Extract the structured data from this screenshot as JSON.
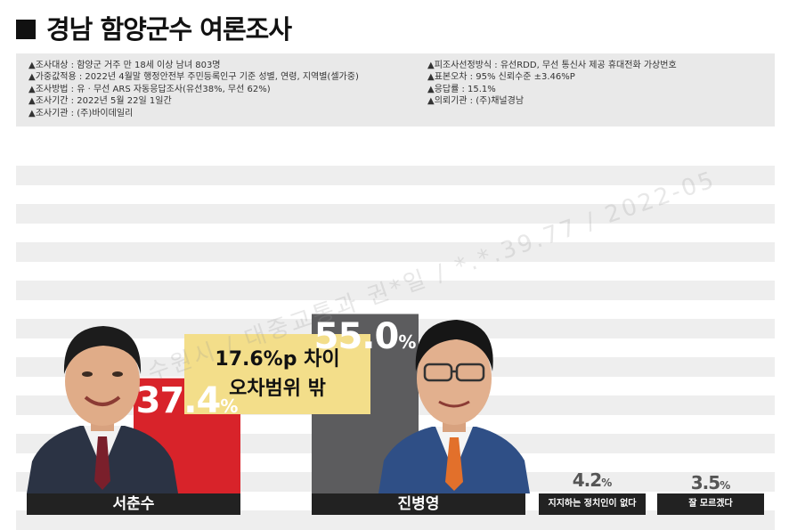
{
  "title": "경남 함양군수 여론조사",
  "info_left": [
    "▲조사대상 : 함양군 거주 만 18세 이상 남녀 803명",
    "▲가중값적용 : 2022년 4월말 행정안전부 주민등록인구 기준 성별, 연령, 지역별(셀가중)",
    "▲조사방법 : 유 · 무선 ARS 자동응답조사(유선38%, 무선 62%)",
    "▲조사기간 : 2022년 5월 22일 1일간",
    "▲조사기관 : (주)바이데일리"
  ],
  "info_right": [
    "▲피조사선정방식 : 유선RDD, 무선 통신사 제공 휴대전화 가상번호",
    "▲표본오차 : 95% 신뢰수준 ±3.46%P",
    "▲응답률 : 15.1%",
    "▲의뢰기관 : (주)채널경남"
  ],
  "callout": {
    "line1": "17.6%p 차이",
    "line2": "오차범위 밖"
  },
  "watermark": "수원시 / 대중교통과 권*일 / *.*.39.77 / 2022-05",
  "colors": {
    "seo": "#d8232a",
    "jin": "#5c5c5e",
    "other": "#c8c8c8",
    "label_bg": "#222222"
  },
  "chart_data": {
    "type": "bar",
    "title": "경남 함양군수 여론조사",
    "categories": [
      "서춘수",
      "진병영",
      "지지하는 정치인이 없다",
      "잘 모르겠다"
    ],
    "values": [
      37.4,
      55.0,
      4.2,
      3.5
    ],
    "value_labels": [
      "37.4",
      "55.0",
      "4.2",
      "3.5"
    ],
    "unit": "%",
    "ylim": [
      0,
      60
    ],
    "grid": true
  }
}
